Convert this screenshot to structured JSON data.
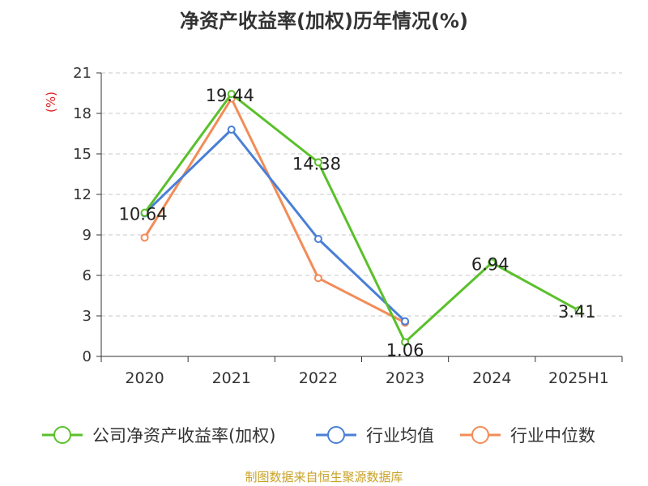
{
  "chart_data": {
    "type": "line",
    "title": "净资产收益率(加权)历年情况(%)",
    "ylabel": "(%)",
    "categories": [
      "2020",
      "2021",
      "2022",
      "2023",
      "2024",
      "2025H1"
    ],
    "ylim": [
      0,
      21
    ],
    "yticks": [
      0,
      3,
      6,
      9,
      12,
      15,
      18,
      21
    ],
    "grid": true,
    "legend_position": "bottom",
    "series": [
      {
        "name": "公司净资产收益率(加权)",
        "color": "#5ac02b",
        "values": [
          10.64,
          19.44,
          14.38,
          1.06,
          6.94,
          3.41
        ],
        "labels": [
          "10.64",
          "19.44",
          "14.38",
          "1.06",
          "6.94",
          "3.41"
        ]
      },
      {
        "name": "行业均值",
        "color": "#4a7fd6",
        "values": [
          10.6,
          16.8,
          8.7,
          2.6,
          null,
          null
        ]
      },
      {
        "name": "行业中位数",
        "color": "#f28c58",
        "values": [
          8.8,
          19.1,
          5.8,
          2.5,
          null,
          null
        ]
      }
    ]
  },
  "footer": {
    "source": "制图数据来自恒生聚源数据库"
  }
}
